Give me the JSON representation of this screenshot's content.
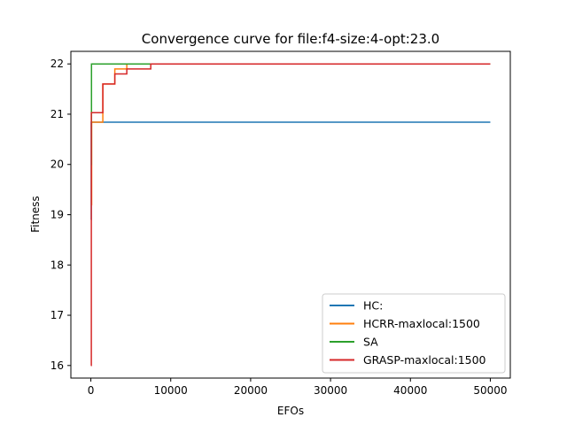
{
  "chart_data": {
    "type": "line",
    "title": "Convergence curve for file:f4-size:4-opt:23.0",
    "xlabel": "EFOs",
    "ylabel": "Fitness",
    "xlim": [
      -2500,
      52500
    ],
    "ylim": [
      15.75,
      22.25
    ],
    "xticks": [
      0,
      10000,
      20000,
      30000,
      40000,
      50000
    ],
    "yticks": [
      16,
      17,
      18,
      19,
      20,
      21,
      22
    ],
    "legend_position": "lower-right",
    "grid": false,
    "series": [
      {
        "name": "HC:",
        "color": "#1f77b4",
        "step": true,
        "x": [
          0,
          50,
          50000
        ],
        "y": [
          18.9,
          20.84,
          20.84
        ]
      },
      {
        "name": "HCRR-maxlocal:1500",
        "color": "#ff7f0e",
        "step": true,
        "x": [
          0,
          100,
          1500,
          3000,
          4500,
          50000
        ],
        "y": [
          19.2,
          20.84,
          21.6,
          21.9,
          22.0,
          22.0
        ]
      },
      {
        "name": "SA",
        "color": "#2ca02c",
        "step": true,
        "x": [
          0,
          80,
          50000
        ],
        "y": [
          20.0,
          22.0,
          22.0
        ]
      },
      {
        "name": "GRASP-maxlocal:1500",
        "color": "#d62728",
        "step": true,
        "x": [
          0,
          60,
          1500,
          3000,
          4500,
          7500,
          50000
        ],
        "y": [
          16.0,
          21.03,
          21.6,
          21.8,
          21.9,
          22.0,
          22.0
        ]
      }
    ]
  }
}
